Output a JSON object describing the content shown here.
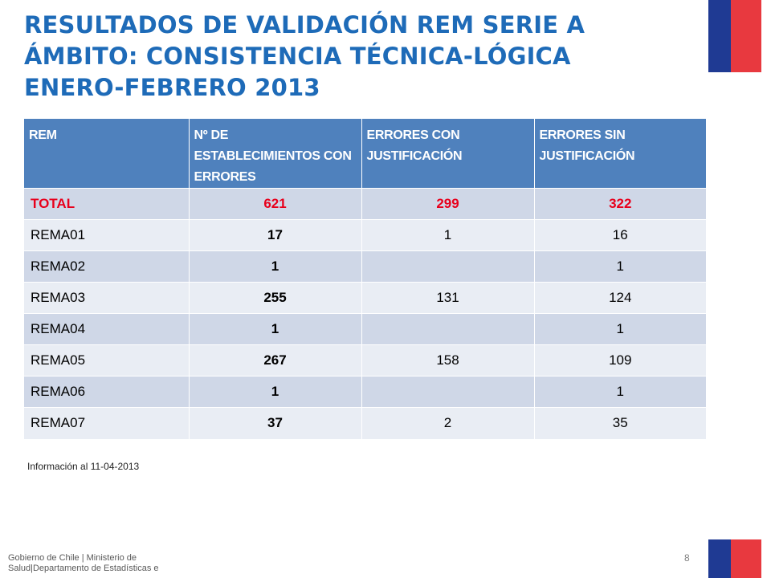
{
  "title": {
    "line1": "RESULTADOS DE VALIDACIÓN REM SERIE A",
    "line2": "ÁMBITO: CONSISTENCIA TÉCNICA-LÓGICA",
    "line3": "ENERO-FEBRERO 2013"
  },
  "table": {
    "headers": [
      "REM",
      "Nº DE ESTABLECIMIENTOS CON ERRORES",
      "ERRORES CON JUSTIFICACIÓN",
      "ERRORES SIN JUSTIFICACIÓN"
    ],
    "rows": [
      [
        "TOTAL",
        "621",
        "299",
        "322"
      ],
      [
        "REMA01",
        "17",
        "1",
        "16"
      ],
      [
        "REMA02",
        "1",
        "",
        "1"
      ],
      [
        "REMA03",
        "255",
        "131",
        "124"
      ],
      [
        "REMA04",
        "1",
        "",
        "1"
      ],
      [
        "REMA05",
        "267",
        "158",
        "109"
      ],
      [
        "REMA06",
        "1",
        "",
        "1"
      ],
      [
        "REMA07",
        "37",
        "2",
        "35"
      ]
    ]
  },
  "note": "Información al 11-04-2013",
  "footer": "Gobierno de Chile | Ministerio de Salud|Departamento de Estadísticas e",
  "page_number": "8",
  "colors": {
    "title": "#1e6bb8",
    "header_bg": "#4f81bd",
    "total_text": "#e8001c",
    "flag_blue": "#1f3a93",
    "flag_red": "#e8393f"
  }
}
